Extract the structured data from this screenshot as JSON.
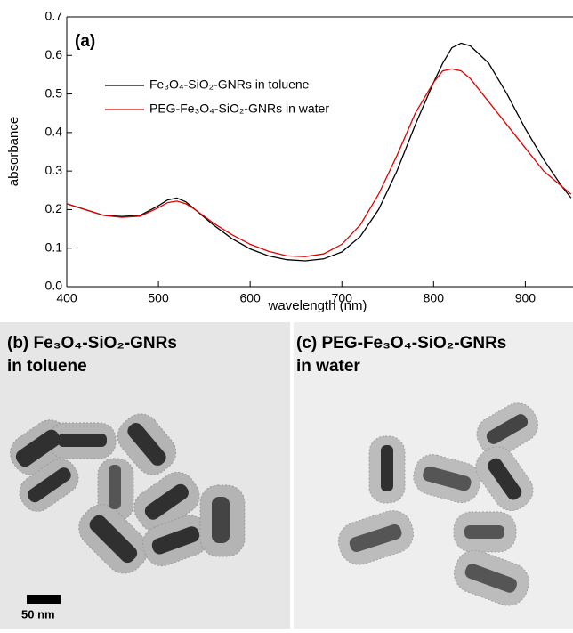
{
  "chart_data": {
    "type": "line",
    "panel_label": "(a)",
    "x_label": "wavelength (nm)",
    "y_label": "absorbance",
    "x": [
      400,
      420,
      440,
      460,
      480,
      500,
      510,
      520,
      530,
      540,
      560,
      580,
      600,
      620,
      640,
      660,
      680,
      700,
      720,
      740,
      760,
      780,
      800,
      810,
      820,
      830,
      840,
      860,
      880,
      900,
      920,
      940,
      950
    ],
    "series": [
      {
        "name": "Fe₃O₄-SiO₂-GNRs in toluene",
        "color": "#000000",
        "values": [
          0.215,
          0.2,
          0.185,
          0.182,
          0.185,
          0.21,
          0.225,
          0.23,
          0.22,
          0.2,
          0.16,
          0.125,
          0.098,
          0.08,
          0.07,
          0.067,
          0.072,
          0.09,
          0.13,
          0.2,
          0.3,
          0.42,
          0.53,
          0.58,
          0.62,
          0.632,
          0.625,
          0.58,
          0.5,
          0.41,
          0.33,
          0.26,
          0.23
        ]
      },
      {
        "name": "PEG-Fe₃O₄-SiO₂-GNRs in water",
        "color": "#e00000",
        "values": [
          0.215,
          0.2,
          0.185,
          0.18,
          0.183,
          0.205,
          0.218,
          0.222,
          0.215,
          0.2,
          0.165,
          0.135,
          0.11,
          0.092,
          0.08,
          0.078,
          0.085,
          0.11,
          0.16,
          0.24,
          0.34,
          0.45,
          0.53,
          0.56,
          0.565,
          0.56,
          0.54,
          0.48,
          0.42,
          0.36,
          0.3,
          0.26,
          0.24
        ]
      }
    ],
    "xlim": [
      400,
      952
    ],
    "ylim": [
      0,
      0.7
    ],
    "xticks": [
      400,
      500,
      600,
      700,
      800,
      900
    ],
    "yticks": [
      {
        "value": 0,
        "label": "0.0"
      },
      0.1,
      0.2,
      0.3,
      0.4,
      0.5,
      0.6,
      0.7
    ]
  },
  "images": [
    {
      "title_lines": [
        "(b) Fe₃O₄-SiO₂-GNRs",
        "in toluene"
      ],
      "scale_bar": "50 nm"
    },
    {
      "title_lines": [
        "(c) PEG-Fe₃O₄-SiO₂-GNRs",
        "in water"
      ]
    }
  ]
}
